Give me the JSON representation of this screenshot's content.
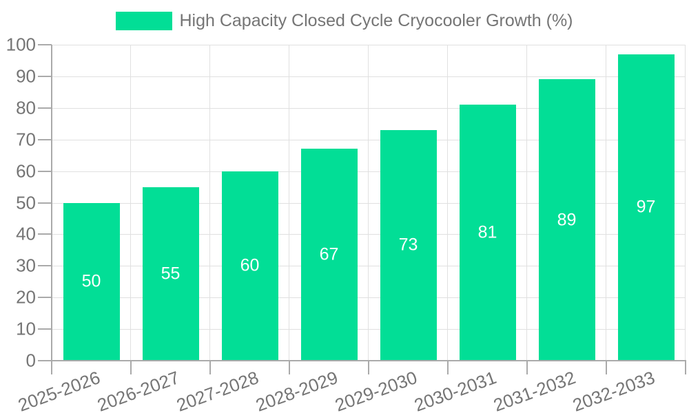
{
  "legend": {
    "series_label": "High Capacity Closed Cycle Cryocooler Growth (%)"
  },
  "colors": {
    "bar": "#02DE96",
    "value_label": "#FFFFFF",
    "axis_line": "#AAAAAA",
    "gridline": "#E0E0E0",
    "tick_text": "#757575"
  },
  "chart_data": {
    "type": "bar",
    "title": "High Capacity Closed Cycle Cryocooler Growth (%)",
    "categories": [
      "2025-2026",
      "2026-2027",
      "2027-2028",
      "2028-2029",
      "2029-2030",
      "2030-2031",
      "2031-2032",
      "2032-2033"
    ],
    "values": [
      50,
      55,
      60,
      67,
      73,
      81,
      89,
      97
    ],
    "xlabel": "",
    "ylabel": "",
    "ylim": [
      0,
      100
    ],
    "yticks": [
      0,
      10,
      20,
      30,
      40,
      50,
      60,
      70,
      80,
      90,
      100
    ],
    "grid": true,
    "legend_position": "top",
    "value_labels": "inside-center",
    "x_tick_label_rotation_deg": -20
  }
}
